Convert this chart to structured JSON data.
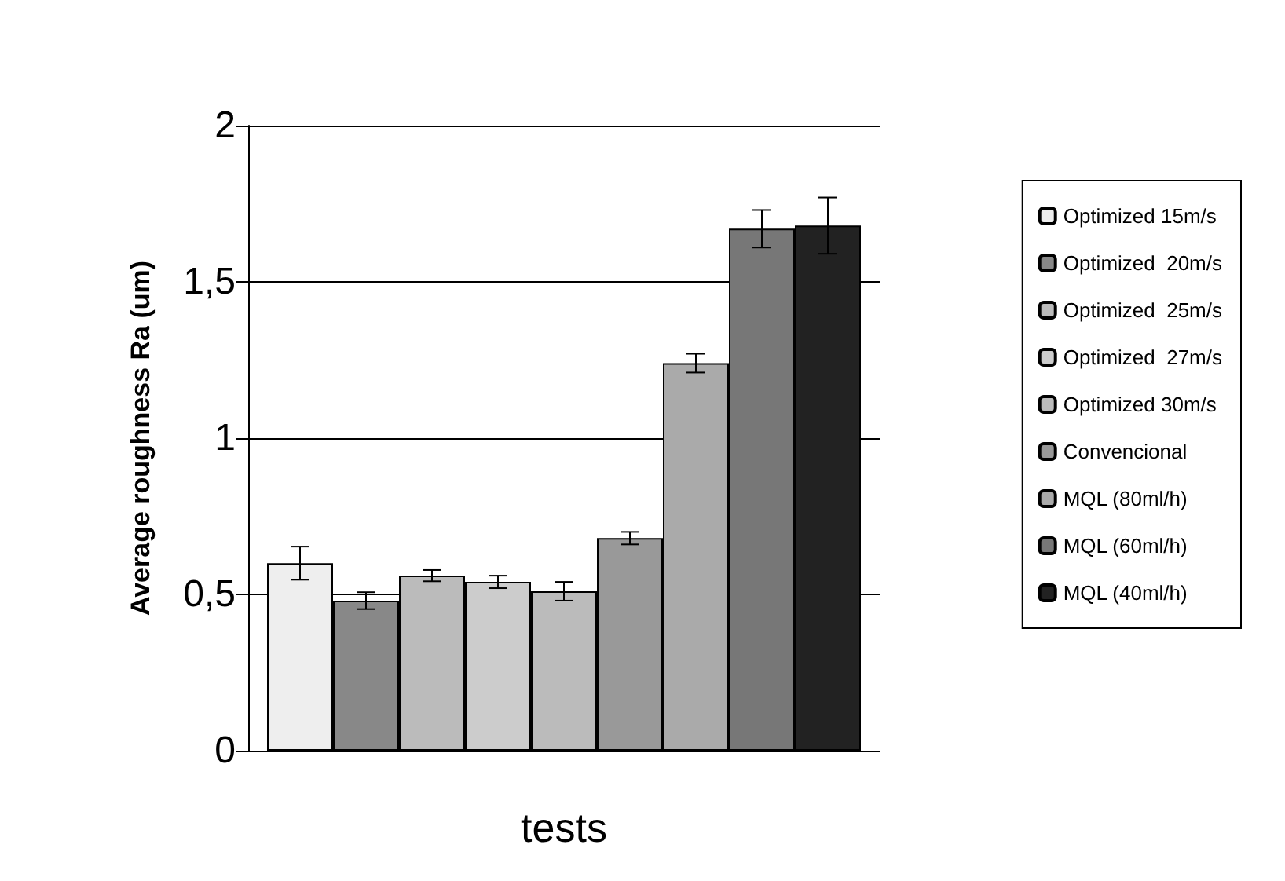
{
  "chart_data": {
    "type": "bar",
    "xlabel": "tests",
    "ylabel": "Average roughness Ra (um)",
    "categories": [
      null
    ],
    "series": [
      {
        "name": "Optimized 15m/s",
        "color": "#eeeeee",
        "values": [
          0.6
        ],
        "errors": [
          0.053
        ]
      },
      {
        "name": "Optimized  20m/s",
        "color": "#888888",
        "values": [
          0.48
        ],
        "errors": [
          0.027
        ]
      },
      {
        "name": "Optimized  25m/s",
        "color": "#bbbbbb",
        "values": [
          0.56
        ],
        "errors": [
          0.018
        ]
      },
      {
        "name": "Optimized  27m/s",
        "color": "#cccccc",
        "values": [
          0.54
        ],
        "errors": [
          0.02
        ]
      },
      {
        "name": "Optimized 30m/s",
        "color": "#bbbbbb",
        "values": [
          0.51
        ],
        "errors": [
          0.03
        ]
      },
      {
        "name": "Convencional",
        "color": "#999999",
        "values": [
          0.68
        ],
        "errors": [
          0.02
        ]
      },
      {
        "name": "MQL (80ml/h)",
        "color": "#aaaaaa",
        "values": [
          1.24
        ],
        "errors": [
          0.03
        ]
      },
      {
        "name": "MQL (60ml/h)",
        "color": "#777777",
        "values": [
          1.67
        ],
        "errors": [
          0.06
        ]
      },
      {
        "name": "MQL (40ml/h)",
        "color": "#222222",
        "values": [
          1.68
        ],
        "errors": [
          0.09
        ]
      }
    ],
    "ylim": [
      0,
      2
    ],
    "yticks": [
      {
        "value": 0,
        "label": "0"
      },
      {
        "value": 0.5,
        "label": "0,5"
      },
      {
        "value": 1,
        "label": "1"
      },
      {
        "value": 1.5,
        "label": "1,5"
      },
      {
        "value": 2,
        "label": "2"
      }
    ],
    "grid": "y",
    "legend": "right"
  }
}
